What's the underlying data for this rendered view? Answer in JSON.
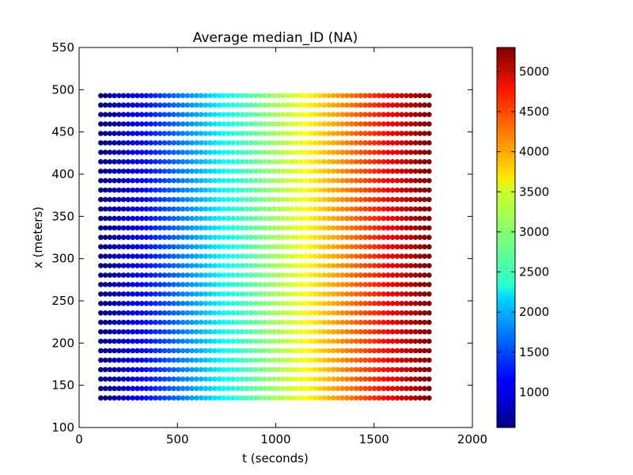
{
  "chart_data": {
    "type": "scatter",
    "title": "Average median_ID (NA)",
    "xlabel": "t (seconds)",
    "ylabel": "x (meters)",
    "xlim": [
      0,
      2000
    ],
    "ylim": [
      100,
      550
    ],
    "xticks": [
      0,
      500,
      1000,
      1500,
      2000
    ],
    "yticks": [
      100,
      150,
      200,
      250,
      300,
      350,
      400,
      450,
      500,
      550
    ],
    "x_tick_labels": [
      "0",
      "500",
      "1000",
      "1500",
      "2000"
    ],
    "y_tick_labels": [
      "100",
      "150",
      "200",
      "250",
      "300",
      "350",
      "400",
      "450",
      "500",
      "550"
    ],
    "grid": false,
    "points": {
      "x_start": 110,
      "x_end": 1780,
      "x_count": 73,
      "y_start": 135,
      "y_end": 493,
      "y_count": 33
    },
    "color_value": {
      "description_units": "color encodes value increasing linearly with t",
      "value_at_x_start": 560,
      "value_at_x_end": 5300
    },
    "colorbar": {
      "colormap": "jet",
      "vmin": 560,
      "vmax": 5300,
      "ticks": [
        1000,
        1500,
        2000,
        2500,
        3000,
        3500,
        4000,
        4500,
        5000
      ],
      "tick_labels": [
        "1000",
        "1500",
        "2000",
        "2500",
        "3000",
        "3500",
        "4000",
        "4500",
        "5000"
      ]
    }
  }
}
